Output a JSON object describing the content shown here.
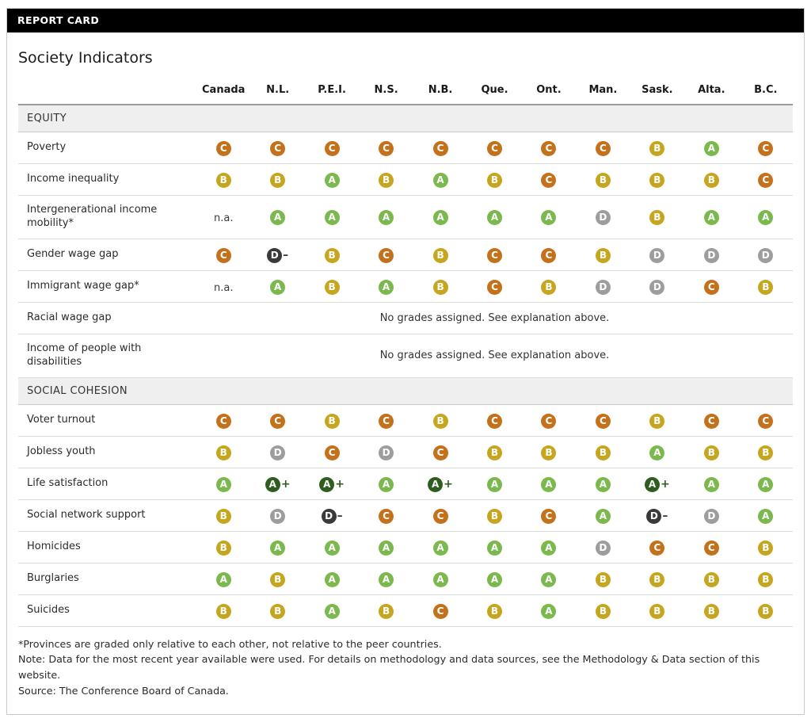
{
  "header": {
    "bar_title": "REPORT CARD"
  },
  "colors": {
    "A+": "#2e5d1f",
    "A": "#7bb84d",
    "B": "#c6a51f",
    "C": "#c4711c",
    "D": "#9d9d9d",
    "D-": "#3a3a3a"
  },
  "chart_data": {
    "type": "table",
    "title": "Society Indicators",
    "columns": [
      "Canada",
      "N.L.",
      "P.E.I.",
      "N.S.",
      "N.B.",
      "Que.",
      "Ont.",
      "Man.",
      "Sask.",
      "Alta.",
      "B.C."
    ],
    "sections": [
      {
        "title": "EQUITY",
        "rows": [
          {
            "label": "Poverty",
            "grades": [
              "C",
              "C",
              "C",
              "C",
              "C",
              "C",
              "C",
              "C",
              "B",
              "A",
              "C"
            ]
          },
          {
            "label": "Income inequality",
            "grades": [
              "B",
              "B",
              "A",
              "B",
              "A",
              "B",
              "C",
              "B",
              "B",
              "B",
              "C"
            ]
          },
          {
            "label": "Intergenerational income mobility*",
            "grades": [
              "n.a.",
              "A",
              "A",
              "A",
              "A",
              "A",
              "A",
              "D",
              "B",
              "A",
              "A"
            ]
          },
          {
            "label": "Gender wage gap",
            "grades": [
              "C",
              "D-",
              "B",
              "C",
              "B",
              "C",
              "C",
              "B",
              "D",
              "D",
              "D"
            ]
          },
          {
            "label": "Immigrant wage gap*",
            "grades": [
              "n.a.",
              "A",
              "B",
              "A",
              "B",
              "C",
              "B",
              "D",
              "D",
              "C",
              "B"
            ]
          },
          {
            "label": "Racial wage gap",
            "span_text": "No grades assigned. See explanation above."
          },
          {
            "label": "Income of people with disabilities",
            "span_text": "No grades assigned. See explanation above."
          }
        ]
      },
      {
        "title": "SOCIAL COHESION",
        "rows": [
          {
            "label": "Voter turnout",
            "grades": [
              "C",
              "C",
              "B",
              "C",
              "B",
              "C",
              "C",
              "C",
              "B",
              "C",
              "C"
            ]
          },
          {
            "label": "Jobless youth",
            "grades": [
              "B",
              "D",
              "C",
              "D",
              "C",
              "B",
              "B",
              "B",
              "A",
              "B",
              "B"
            ]
          },
          {
            "label": "Life satisfaction",
            "grades": [
              "A",
              "A+",
              "A+",
              "A",
              "A+",
              "A",
              "A",
              "A",
              "A+",
              "A",
              "A"
            ]
          },
          {
            "label": "Social network support",
            "grades": [
              "B",
              "D",
              "D-",
              "C",
              "C",
              "B",
              "C",
              "A",
              "D-",
              "D",
              "A"
            ]
          },
          {
            "label": "Homicides",
            "grades": [
              "B",
              "A",
              "A",
              "A",
              "A",
              "A",
              "A",
              "D",
              "C",
              "C",
              "B"
            ]
          },
          {
            "label": "Burglaries",
            "grades": [
              "A",
              "B",
              "A",
              "A",
              "A",
              "A",
              "A",
              "B",
              "B",
              "B",
              "B"
            ]
          },
          {
            "label": "Suicides",
            "grades": [
              "B",
              "B",
              "A",
              "B",
              "C",
              "B",
              "A",
              "B",
              "B",
              "B",
              "B"
            ]
          }
        ]
      }
    ]
  },
  "footnotes": {
    "0": "*Provinces are graded only relative to each other, not relative to the peer countries.",
    "1": "Note: Data for the most recent year available were used. For details on methodology and data sources, see the Methodology & Data section of this website.",
    "2": "Source: The Conference Board of Canada."
  }
}
